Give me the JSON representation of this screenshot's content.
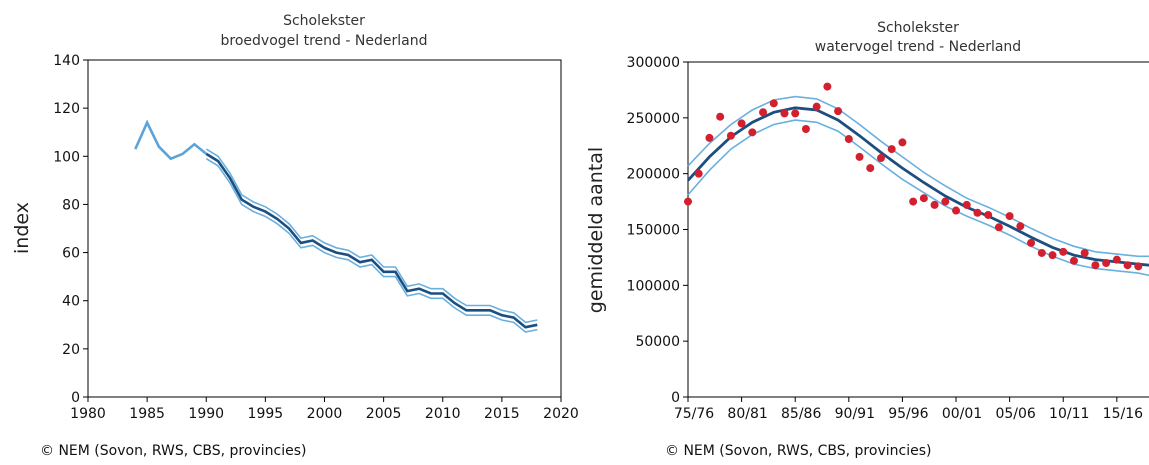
{
  "colors": {
    "trend": "#1c4e80",
    "band": "#69b0df",
    "observed": "#5ba3d9",
    "points": "#d3202f",
    "axis": "#000000"
  },
  "credits": {
    "left": "© NEM (Sovon, RWS, CBS, provincies)",
    "right": "© NEM (Sovon, RWS, CBS, provincies)"
  },
  "chart_data": [
    {
      "type": "line",
      "title": "Scholekster",
      "subtitle": "broedvogel trend - Nederland",
      "xlabel": "",
      "ylabel": "index",
      "xlim": [
        1980,
        2020
      ],
      "ylim": [
        0,
        140
      ],
      "xticks": [
        1980,
        1985,
        1990,
        1995,
        2000,
        2005,
        2010,
        2015,
        2020
      ],
      "yticks": [
        0,
        20,
        40,
        60,
        80,
        100,
        120,
        140
      ],
      "grid": false,
      "series": [
        {
          "role": "observed",
          "x": [
            1984,
            1985,
            1986,
            1987,
            1988,
            1989,
            1990
          ],
          "values": [
            103,
            114,
            104,
            99,
            101,
            105,
            101
          ]
        },
        {
          "role": "trend",
          "x": [
            1990,
            1991,
            1992,
            1993,
            1994,
            1995,
            1996,
            1997,
            1998,
            1999,
            2000,
            2001,
            2002,
            2003,
            2004,
            2005,
            2006,
            2007,
            2008,
            2009,
            2010,
            2011,
            2012,
            2013,
            2014,
            2015,
            2016,
            2017,
            2018
          ],
          "values": [
            101,
            98,
            91,
            82,
            79,
            77,
            74,
            70,
            64,
            65,
            62,
            60,
            59,
            56,
            57,
            52,
            52,
            44,
            45,
            43,
            43,
            39,
            36,
            36,
            36,
            34,
            33,
            29,
            30
          ]
        }
      ],
      "band_halfwidth": 2
    },
    {
      "type": "scatter",
      "title": "Scholekster",
      "subtitle": "watervogel trend - Nederland",
      "xlabel": "",
      "ylabel": "gemiddeld aantal",
      "xlim": [
        1975,
        2018
      ],
      "ylim": [
        0,
        300000
      ],
      "xticks": [
        "75/76",
        "80/81",
        "85/86",
        "90/91",
        "95/96",
        "00/01",
        "05/06",
        "10/11",
        "15/16"
      ],
      "yticks": [
        0,
        50000,
        100000,
        150000,
        200000,
        250000,
        300000
      ],
      "grid": false,
      "points": {
        "x": [
          1975,
          1976,
          1977,
          1978,
          1979,
          1980,
          1981,
          1982,
          1983,
          1984,
          1985,
          1986,
          1987,
          1988,
          1989,
          1990,
          1991,
          1992,
          1993,
          1994,
          1995,
          1996,
          1997,
          1998,
          1999,
          2000,
          2001,
          2002,
          2003,
          2004,
          2005,
          2006,
          2007,
          2008,
          2009,
          2010,
          2011,
          2012,
          2013,
          2014,
          2015,
          2016,
          2017
        ],
        "values": [
          175000,
          200000,
          232000,
          251000,
          234000,
          245000,
          237000,
          255000,
          263000,
          254000,
          254000,
          240000,
          260000,
          278000,
          256000,
          231000,
          215000,
          205000,
          214000,
          222000,
          228000,
          175000,
          178000,
          172000,
          175000,
          167000,
          172000,
          165000,
          163000,
          152000,
          162000,
          153000,
          138000,
          129000,
          127000,
          130000,
          122000,
          129000,
          118000,
          120000,
          123000,
          118000,
          117000
        ]
      },
      "trend": {
        "x": [
          1975,
          1977,
          1979,
          1981,
          1983,
          1985,
          1987,
          1989,
          1991,
          1993,
          1995,
          1997,
          1999,
          2001,
          2003,
          2005,
          2007,
          2009,
          2011,
          2013,
          2015,
          2017,
          2018
        ],
        "values": [
          194000,
          215000,
          233000,
          246000,
          255000,
          259000,
          257000,
          248000,
          234000,
          219000,
          205000,
          192000,
          180000,
          170000,
          162000,
          153000,
          143000,
          134000,
          127000,
          123000,
          121000,
          119000,
          118000
        ]
      },
      "upper": {
        "x": [
          1975,
          1977,
          1979,
          1981,
          1983,
          1985,
          1987,
          1989,
          1991,
          1993,
          1995,
          1997,
          1999,
          2001,
          2003,
          2005,
          2007,
          2009,
          2011,
          2013,
          2015,
          2017,
          2018
        ],
        "values": [
          207000,
          227000,
          244000,
          257000,
          266000,
          269000,
          267000,
          258000,
          244000,
          229000,
          215000,
          201000,
          189000,
          178000,
          170000,
          161000,
          151000,
          142000,
          135000,
          130000,
          128000,
          126000,
          126000
        ]
      },
      "lower": {
        "x": [
          1975,
          1977,
          1979,
          1981,
          1983,
          1985,
          1987,
          1989,
          1991,
          1993,
          1995,
          1997,
          1999,
          2001,
          2003,
          2005,
          2007,
          2009,
          2011,
          2013,
          2015,
          2017,
          2018
        ],
        "values": [
          181000,
          203000,
          222000,
          235000,
          244000,
          248000,
          246000,
          238000,
          224000,
          209000,
          195000,
          183000,
          171000,
          162000,
          154000,
          145000,
          135000,
          126000,
          119000,
          115000,
          113000,
          111000,
          109000
        ]
      }
    }
  ]
}
